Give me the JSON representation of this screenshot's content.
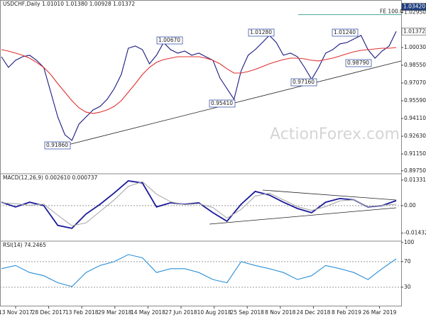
{
  "chart_data": [
    {
      "type": "line",
      "title": "USDCHF,Daily  1.01010 1.01380 1.00928 1.01372",
      "watermark": "ActionForex.com",
      "fe_label": "FE 100.0",
      "ylim": [
        0.895,
        1.0399
      ],
      "yticks": [
        {
          "value": 0.8975,
          "label": "0.89750"
        },
        {
          "value": 0.9115,
          "label": "0.91150"
        },
        {
          "value": 0.9263,
          "label": "0.92630"
        },
        {
          "value": 0.9411,
          "label": "0.94110"
        },
        {
          "value": 0.9559,
          "label": "0.95590"
        },
        {
          "value": 0.9707,
          "label": "0.97070"
        },
        {
          "value": 0.9855,
          "label": "0.98550"
        },
        {
          "value": 1.0003,
          "label": "1.00030"
        },
        {
          "value": 1.0295,
          "label": "1.02950"
        }
      ],
      "markers": [
        {
          "value": 1.0342,
          "label": "1.03420"
        },
        {
          "value": 1.01372,
          "label": "1.01372"
        }
      ],
      "annotations": [
        "0.91860",
        "1.00670",
        "0.95410",
        "1.01280",
        "0.97160",
        "1.01240",
        "0.98790"
      ],
      "xticks": [
        "13 Nov 2017",
        "28 Dec 2017",
        "13 Feb 2018",
        "29 Mar 2018",
        "14 May 2018",
        "27 Jun 2018",
        "10 Aug 2018",
        "25 Sep 2018",
        "8 Nov 2018",
        "24 Dec 2018",
        "8 Feb 2019",
        "26 Mar 2019"
      ],
      "series": [
        {
          "color": "#1a1a80",
          "values": [
            0.9926,
            0.9837,
            0.9896,
            0.9926,
            0.9938,
            0.9896,
            0.9837,
            0.963,
            0.9423,
            0.9275,
            0.9228,
            0.9364,
            0.9423,
            0.9482,
            0.9512,
            0.9571,
            0.966,
            0.9778,
            0.9997,
            1.0015,
            0.9985,
            0.9867,
            0.9938,
            1.0044,
            0.9985,
            0.9956,
            0.9973,
            0.9938,
            0.9956,
            0.9926,
            0.9896,
            0.9749,
            0.966,
            0.9571,
            0.9808,
            0.9938,
            0.9985,
            1.0044,
            1.0104,
            1.0044,
            0.9938,
            0.9956,
            0.9926,
            0.9837,
            0.9737,
            0.9837,
            0.9956,
            0.9985,
            1.0033,
            1.0044,
            1.0074,
            1.0104,
            0.9985,
            0.9914,
            0.9973,
            1.0015,
            1.0137
          ]
        },
        {
          "color": "#e03030",
          "values": [
            0.9985,
            0.9973,
            0.9956,
            0.9938,
            0.9914,
            0.9879,
            0.9837,
            0.9778,
            0.9701,
            0.963,
            0.9559,
            0.95,
            0.9464,
            0.9452,
            0.9464,
            0.9482,
            0.9512,
            0.9559,
            0.963,
            0.9701,
            0.9778,
            0.9837,
            0.9879,
            0.9902,
            0.9914,
            0.9926,
            0.9926,
            0.9926,
            0.9926,
            0.9914,
            0.9896,
            0.9867,
            0.9825,
            0.979,
            0.979,
            0.9802,
            0.982,
            0.9843,
            0.9867,
            0.9885,
            0.9902,
            0.9914,
            0.9914,
            0.9908,
            0.9896,
            0.9891,
            0.9902,
            0.9914,
            0.9932,
            0.995,
            0.9967,
            0.9979,
            0.9985,
            0.9991,
            0.9997,
            0.9997,
            1.0003
          ]
        }
      ]
    },
    {
      "type": "line",
      "title": "MACD(12,26,9) 0.002610 0.000737",
      "ylim": [
        -0.0185,
        0.0166
      ],
      "yticks": [
        0.013319,
        {
          "value": 0,
          "label": "0.00"
        },
        -0.014323
      ],
      "series": [
        {
          "color": "#1a1a9a",
          "values": [
            0.0018,
            -0.0007,
            0.0018,
            0,
            -0.0103,
            -0.0118,
            -0.0044,
            0.0007,
            0.0066,
            0.0129,
            0.0118,
            -0.0007,
            0.0015,
            0.0007,
            0.0015,
            -0.0037,
            -0.0081,
            0.0007,
            0.0074,
            0.0055,
            0.0018,
            -0.0015,
            -0.0037,
            0.0018,
            0.0037,
            0.003,
            -0.0007,
            0,
            0.0026
          ]
        },
        {
          "color": "#aaaaaa",
          "values": [
            0.0015,
            0.001,
            0.0002,
            0.0008,
            -0.005,
            -0.0105,
            -0.009,
            -0.003,
            0.003,
            0.01,
            0.0125,
            0.006,
            0.002,
            0.0005,
            0.001,
            -0.001,
            -0.0065,
            -0.002,
            0.005,
            0.0065,
            0.003,
            -0.0005,
            -0.0025,
            -0.0005,
            0.0025,
            0.003,
            -0.0005,
            0.0002,
            0.0007
          ]
        }
      ]
    },
    {
      "type": "line",
      "title": "RSI(14) 74.2465",
      "ylim": [
        0,
        102
      ],
      "yticks": [
        100,
        70,
        30
      ],
      "series": [
        {
          "color": "#2a8fd8",
          "values": [
            59,
            64,
            53,
            48,
            37,
            31,
            53,
            64,
            70,
            81,
            76,
            53,
            59,
            59,
            53,
            42,
            37,
            70,
            64,
            59,
            53,
            42,
            48,
            64,
            59,
            53,
            42,
            59,
            74.2465
          ]
        }
      ]
    }
  ]
}
